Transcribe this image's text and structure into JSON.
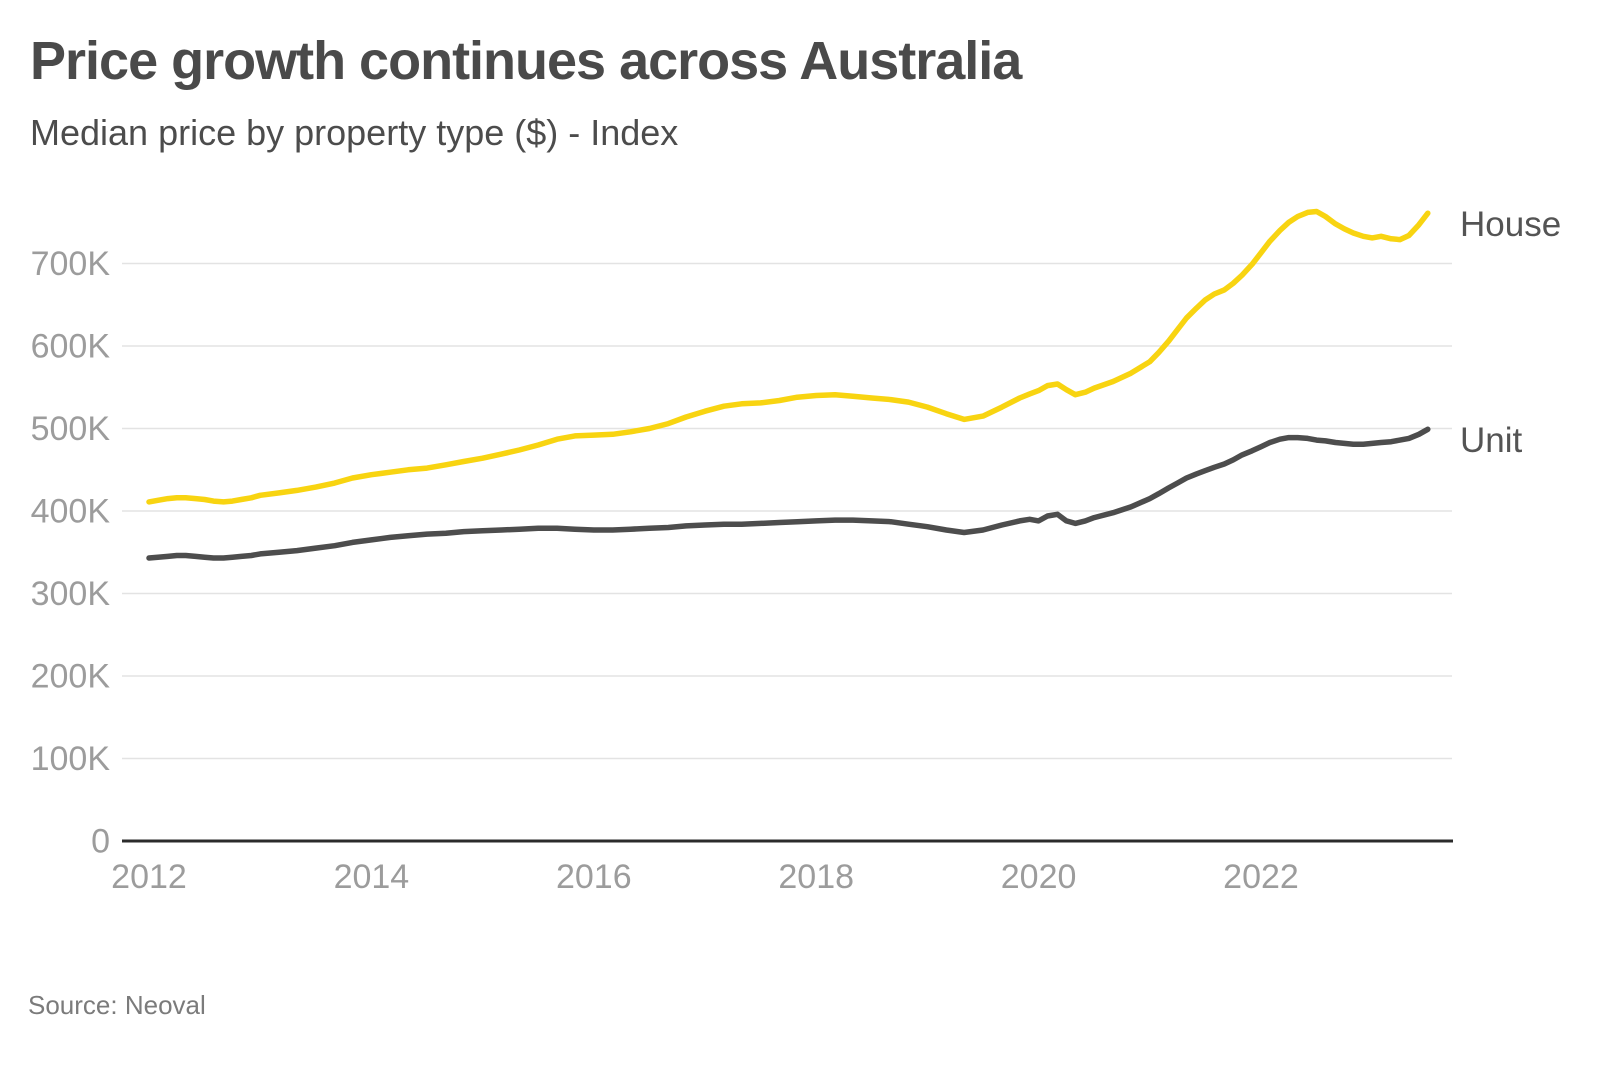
{
  "page": {
    "title": "Price growth continues across Australia",
    "subtitle": "Median price by property type ($) - Index",
    "source": "Source: Neoval"
  },
  "colors": {
    "house_line": "#F8D411",
    "unit_line": "#4d4d4d",
    "title_text": "#4a4a4a",
    "subtitle_text": "#4c4c4c",
    "source_text": "#7b7b7b",
    "axis_tick_text": "#9c9c9c",
    "series_label_text": "#545454",
    "gridline": "#e3e3e3",
    "axis_line": "#2b2b2b",
    "background": "#ffffff"
  },
  "chart_data": {
    "type": "line",
    "title": "Price growth continues across Australia",
    "subtitle": "Median price by property type ($) - Index",
    "xlabel": "",
    "ylabel": "",
    "values_unit": "AUD thousands ($K)",
    "x_unit": "year (decimal)",
    "grid": "horizontal",
    "legend_position": "line-end labels (right of last point)",
    "xlim": [
      2011.97,
      2023.72
    ],
    "ylim": [
      0,
      785
    ],
    "x_ticks": [
      2012,
      2014,
      2016,
      2018,
      2020,
      2022
    ],
    "y_ticks": [
      0,
      100,
      200,
      300,
      400,
      500,
      600,
      700
    ],
    "y_tick_labels": [
      "0",
      "100K",
      "200K",
      "300K",
      "400K",
      "500K",
      "600K",
      "700K"
    ],
    "series": [
      {
        "name": "House",
        "color_key": "house_line",
        "points": [
          [
            2012.0,
            411
          ],
          [
            2012.08,
            413
          ],
          [
            2012.17,
            415
          ],
          [
            2012.25,
            416
          ],
          [
            2012.33,
            416
          ],
          [
            2012.42,
            415
          ],
          [
            2012.5,
            414
          ],
          [
            2012.58,
            412
          ],
          [
            2012.67,
            411
          ],
          [
            2012.75,
            412
          ],
          [
            2012.83,
            414
          ],
          [
            2012.92,
            416
          ],
          [
            2013.0,
            419
          ],
          [
            2013.17,
            422
          ],
          [
            2013.33,
            425
          ],
          [
            2013.5,
            429
          ],
          [
            2013.67,
            434
          ],
          [
            2013.83,
            440
          ],
          [
            2014.0,
            444
          ],
          [
            2014.17,
            447
          ],
          [
            2014.33,
            450
          ],
          [
            2014.5,
            452
          ],
          [
            2014.67,
            456
          ],
          [
            2014.83,
            460
          ],
          [
            2015.0,
            464
          ],
          [
            2015.17,
            469
          ],
          [
            2015.33,
            474
          ],
          [
            2015.5,
            480
          ],
          [
            2015.67,
            487
          ],
          [
            2015.83,
            491
          ],
          [
            2016.0,
            492
          ],
          [
            2016.17,
            493
          ],
          [
            2016.33,
            496
          ],
          [
            2016.5,
            500
          ],
          [
            2016.67,
            506
          ],
          [
            2016.83,
            514
          ],
          [
            2017.0,
            521
          ],
          [
            2017.17,
            527
          ],
          [
            2017.33,
            530
          ],
          [
            2017.5,
            531
          ],
          [
            2017.67,
            534
          ],
          [
            2017.83,
            538
          ],
          [
            2018.0,
            540
          ],
          [
            2018.17,
            541
          ],
          [
            2018.33,
            539
          ],
          [
            2018.5,
            537
          ],
          [
            2018.67,
            535
          ],
          [
            2018.83,
            532
          ],
          [
            2019.0,
            526
          ],
          [
            2019.17,
            518
          ],
          [
            2019.33,
            511
          ],
          [
            2019.5,
            515
          ],
          [
            2019.67,
            526
          ],
          [
            2019.83,
            537
          ],
          [
            2019.92,
            542
          ],
          [
            2020.0,
            546
          ],
          [
            2020.08,
            552
          ],
          [
            2020.17,
            554
          ],
          [
            2020.25,
            547
          ],
          [
            2020.33,
            541
          ],
          [
            2020.42,
            544
          ],
          [
            2020.5,
            549
          ],
          [
            2020.67,
            557
          ],
          [
            2020.83,
            567
          ],
          [
            2021.0,
            581
          ],
          [
            2021.08,
            592
          ],
          [
            2021.17,
            606
          ],
          [
            2021.25,
            620
          ],
          [
            2021.33,
            634
          ],
          [
            2021.42,
            646
          ],
          [
            2021.5,
            656
          ],
          [
            2021.58,
            663
          ],
          [
            2021.67,
            668
          ],
          [
            2021.75,
            676
          ],
          [
            2021.83,
            686
          ],
          [
            2021.92,
            699
          ],
          [
            2022.0,
            713
          ],
          [
            2022.08,
            727
          ],
          [
            2022.17,
            740
          ],
          [
            2022.25,
            750
          ],
          [
            2022.33,
            757
          ],
          [
            2022.42,
            762
          ],
          [
            2022.5,
            763
          ],
          [
            2022.58,
            757
          ],
          [
            2022.67,
            748
          ],
          [
            2022.75,
            742
          ],
          [
            2022.83,
            737
          ],
          [
            2022.92,
            733
          ],
          [
            2023.0,
            731
          ],
          [
            2023.08,
            733
          ],
          [
            2023.17,
            730
          ],
          [
            2023.25,
            729
          ],
          [
            2023.33,
            734
          ],
          [
            2023.42,
            747
          ],
          [
            2023.5,
            761
          ]
        ]
      },
      {
        "name": "Unit",
        "color_key": "unit_line",
        "points": [
          [
            2012.0,
            343
          ],
          [
            2012.08,
            344
          ],
          [
            2012.17,
            345
          ],
          [
            2012.25,
            346
          ],
          [
            2012.33,
            346
          ],
          [
            2012.42,
            345
          ],
          [
            2012.5,
            344
          ],
          [
            2012.58,
            343
          ],
          [
            2012.67,
            343
          ],
          [
            2012.75,
            344
          ],
          [
            2012.83,
            345
          ],
          [
            2012.92,
            346
          ],
          [
            2013.0,
            348
          ],
          [
            2013.17,
            350
          ],
          [
            2013.33,
            352
          ],
          [
            2013.5,
            355
          ],
          [
            2013.67,
            358
          ],
          [
            2013.83,
            362
          ],
          [
            2014.0,
            365
          ],
          [
            2014.17,
            368
          ],
          [
            2014.33,
            370
          ],
          [
            2014.5,
            372
          ],
          [
            2014.67,
            373
          ],
          [
            2014.83,
            375
          ],
          [
            2015.0,
            376
          ],
          [
            2015.17,
            377
          ],
          [
            2015.33,
            378
          ],
          [
            2015.5,
            379
          ],
          [
            2015.67,
            379
          ],
          [
            2015.83,
            378
          ],
          [
            2016.0,
            377
          ],
          [
            2016.17,
            377
          ],
          [
            2016.33,
            378
          ],
          [
            2016.5,
            379
          ],
          [
            2016.67,
            380
          ],
          [
            2016.83,
            382
          ],
          [
            2017.0,
            383
          ],
          [
            2017.17,
            384
          ],
          [
            2017.33,
            384
          ],
          [
            2017.5,
            385
          ],
          [
            2017.67,
            386
          ],
          [
            2017.83,
            387
          ],
          [
            2018.0,
            388
          ],
          [
            2018.17,
            389
          ],
          [
            2018.33,
            389
          ],
          [
            2018.5,
            388
          ],
          [
            2018.67,
            387
          ],
          [
            2018.83,
            384
          ],
          [
            2019.0,
            381
          ],
          [
            2019.17,
            377
          ],
          [
            2019.33,
            374
          ],
          [
            2019.5,
            377
          ],
          [
            2019.67,
            383
          ],
          [
            2019.83,
            388
          ],
          [
            2019.92,
            390
          ],
          [
            2020.0,
            388
          ],
          [
            2020.08,
            394
          ],
          [
            2020.17,
            396
          ],
          [
            2020.25,
            388
          ],
          [
            2020.33,
            385
          ],
          [
            2020.42,
            388
          ],
          [
            2020.5,
            392
          ],
          [
            2020.67,
            398
          ],
          [
            2020.83,
            405
          ],
          [
            2021.0,
            415
          ],
          [
            2021.08,
            421
          ],
          [
            2021.17,
            428
          ],
          [
            2021.25,
            434
          ],
          [
            2021.33,
            440
          ],
          [
            2021.42,
            445
          ],
          [
            2021.5,
            449
          ],
          [
            2021.58,
            453
          ],
          [
            2021.67,
            457
          ],
          [
            2021.75,
            462
          ],
          [
            2021.83,
            468
          ],
          [
            2021.92,
            473
          ],
          [
            2022.0,
            478
          ],
          [
            2022.08,
            483
          ],
          [
            2022.17,
            487
          ],
          [
            2022.25,
            489
          ],
          [
            2022.33,
            489
          ],
          [
            2022.42,
            488
          ],
          [
            2022.5,
            486
          ],
          [
            2022.58,
            485
          ],
          [
            2022.67,
            483
          ],
          [
            2022.75,
            482
          ],
          [
            2022.83,
            481
          ],
          [
            2022.92,
            481
          ],
          [
            2023.0,
            482
          ],
          [
            2023.08,
            483
          ],
          [
            2023.17,
            484
          ],
          [
            2023.25,
            486
          ],
          [
            2023.33,
            488
          ],
          [
            2023.42,
            493
          ],
          [
            2023.5,
            499
          ]
        ]
      }
    ]
  }
}
